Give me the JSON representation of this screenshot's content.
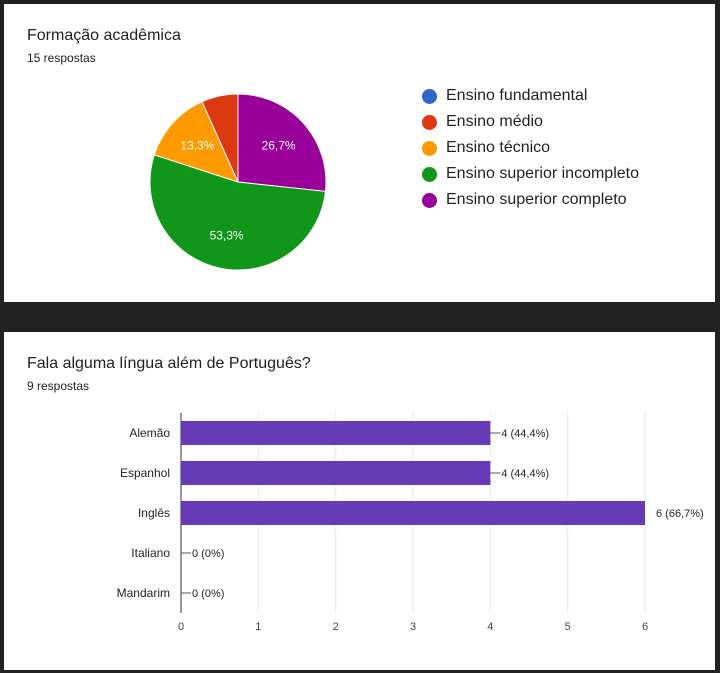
{
  "charts": [
    {
      "title": "Formação acadêmica",
      "responses": "15 respostas",
      "chart_data": {
        "type": "pie",
        "slices": [
          {
            "label": "Ensino fundamental",
            "value": 0,
            "percent_label": "",
            "color": "#3366cc"
          },
          {
            "label": "Ensino médio",
            "value": 6.7,
            "percent_label": "",
            "color": "#dc3912"
          },
          {
            "label": "Ensino técnico",
            "value": 13.3,
            "percent_label": "13,3%",
            "color": "#ff9900"
          },
          {
            "label": "Ensino superior incompleto",
            "value": 53.3,
            "percent_label": "53,3%",
            "color": "#109618"
          },
          {
            "label": "Ensino superior completo",
            "value": 26.7,
            "percent_label": "26,7%",
            "color": "#990099"
          }
        ],
        "legend_position": "right"
      }
    },
    {
      "title": "Fala alguma língua além de Português?",
      "responses": "9 respostas",
      "chart_data": {
        "type": "bar",
        "orientation": "horizontal",
        "categories": [
          "Alemão",
          "Espanhol",
          "Inglês",
          "Italiano",
          "Mandarim"
        ],
        "values": [
          4,
          4,
          6,
          0,
          0
        ],
        "value_labels": [
          "4 (44,4%)",
          "4 (44,4%)",
          "6 (66,7%)",
          "0 (0%)",
          "0 (0%)"
        ],
        "xlim": [
          0,
          6
        ],
        "xticks": [
          "0",
          "1",
          "2",
          "3",
          "4",
          "5",
          "6"
        ],
        "bar_color": "#673ab7",
        "grid": true
      }
    }
  ]
}
